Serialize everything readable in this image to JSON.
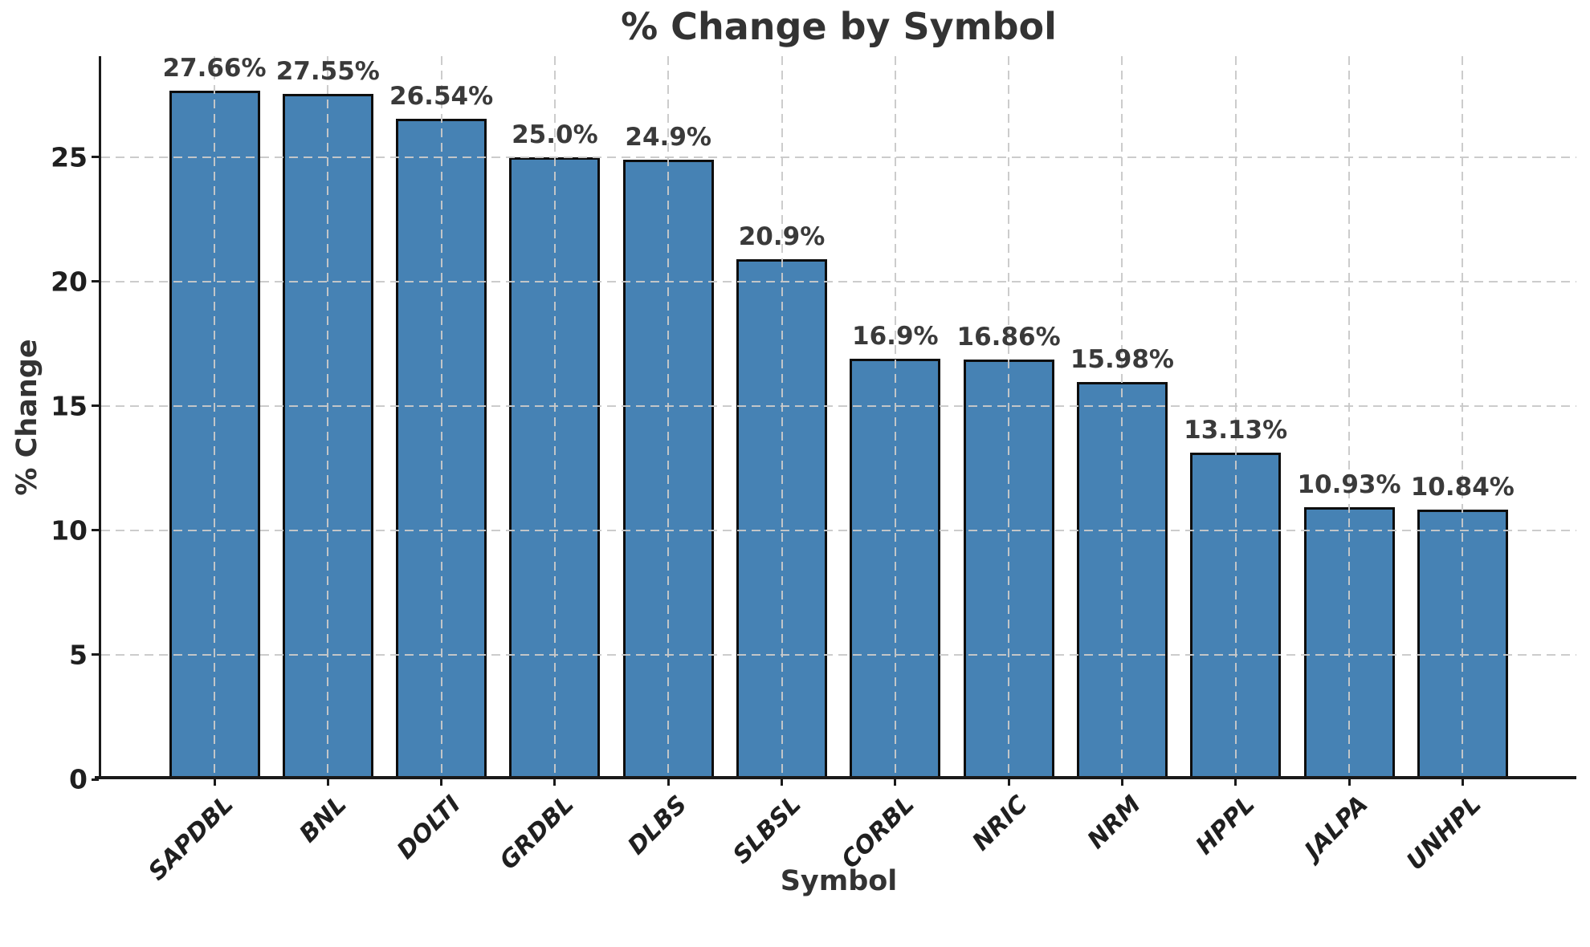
{
  "figure": {
    "title": "% Change by Symbol",
    "xlabel": "Symbol",
    "ylabel": "% Change"
  },
  "chart_data": {
    "type": "bar",
    "title": "% Change by Symbol",
    "xlabel": "Symbol",
    "ylabel": "% Change",
    "categories": [
      "SAPDBL",
      "BNL",
      "DOLTI",
      "GRDBL",
      "DLBS",
      "SLBSL",
      "CORBL",
      "NRIC",
      "NRM",
      "HPPL",
      "JALPA",
      "UNHPL"
    ],
    "values": [
      27.66,
      27.55,
      26.54,
      25.0,
      24.9,
      20.9,
      16.9,
      16.86,
      15.98,
      13.13,
      10.93,
      10.84
    ],
    "value_labels": [
      "27.66%",
      "27.55%",
      "26.54%",
      "25.0%",
      "24.9%",
      "20.9%",
      "16.9%",
      "16.86%",
      "15.98%",
      "13.13%",
      "10.93%",
      "10.84%"
    ],
    "yticks": [
      0,
      5,
      10,
      15,
      20,
      25
    ],
    "ylim": [
      0,
      29.06
    ],
    "grid": "both, dashed, drawn above bars",
    "legend_position": "none",
    "bar_color": "#4682B4",
    "bar_edge_color": "#0d0d0d",
    "grid_color": "#c9c9c9",
    "text_color": "#333333",
    "tick_label_color": "#1f1f1f",
    "spine_color": "#1a1a1a",
    "background_color": "#ffffff"
  }
}
